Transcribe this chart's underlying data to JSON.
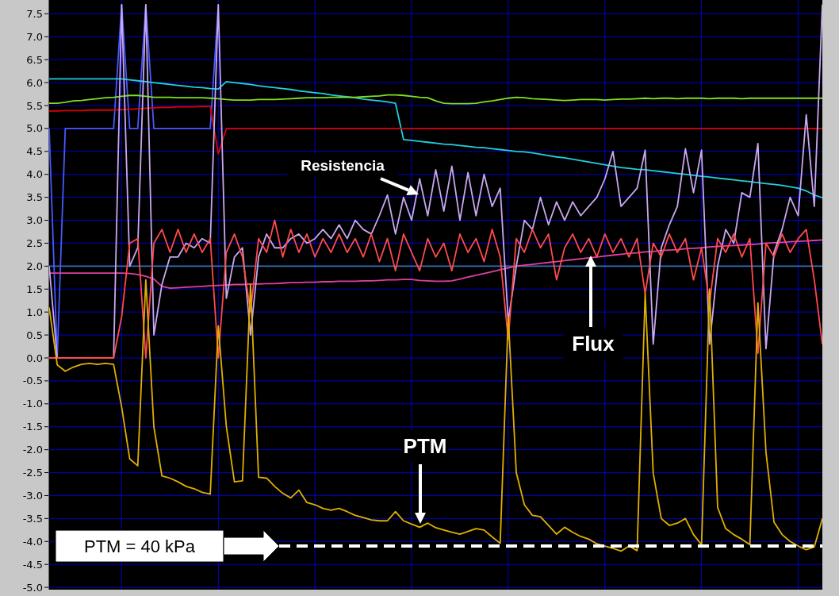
{
  "chart_data": {
    "type": "line",
    "ylim": [
      -5.05,
      7.8
    ],
    "categories": [
      null,
      null,
      null,
      null,
      null,
      null,
      null,
      null,
      null,
      null,
      null,
      null,
      null,
      null,
      null,
      null,
      null,
      null,
      null,
      null,
      null,
      null,
      null,
      null,
      null,
      null,
      null,
      null,
      null,
      null,
      null,
      null,
      null,
      null,
      null,
      null,
      null,
      null,
      null,
      null,
      null,
      null,
      null,
      null,
      null,
      null,
      null,
      null,
      null,
      null,
      null,
      null,
      null,
      null,
      null,
      null,
      null,
      null,
      null,
      null,
      null,
      null,
      null,
      null,
      null,
      null,
      null,
      null,
      null,
      null,
      null,
      null,
      null,
      null,
      null,
      null,
      null,
      null,
      null,
      null,
      null,
      null,
      null,
      null,
      null,
      null,
      null,
      null,
      null,
      null,
      null,
      null,
      null,
      null,
      null,
      null,
      null
    ],
    "yticks": [
      {
        "value": -5,
        "label": "-5.0"
      },
      {
        "value": -4.5,
        "label": "-4.5"
      },
      {
        "value": -4,
        "label": "-4.0"
      },
      {
        "value": -3.5,
        "label": "-3.5"
      },
      {
        "value": -3,
        "label": "-3.0"
      },
      {
        "value": -2.5,
        "label": "-2.5"
      },
      {
        "value": -2,
        "label": "-2.0"
      },
      {
        "value": -1.5,
        "label": "-1.5"
      },
      {
        "value": -1,
        "label": "-1.0"
      },
      {
        "value": -0.5,
        "label": "-0.5"
      },
      {
        "value": 0,
        "label": "0.0"
      },
      {
        "value": 0.5,
        "label": "0.5"
      },
      {
        "value": 1,
        "label": "1.0"
      },
      {
        "value": 1.5,
        "label": "1.5"
      },
      {
        "value": 2,
        "label": "2.0"
      },
      {
        "value": 2.5,
        "label": "2.5"
      },
      {
        "value": 3,
        "label": "3.0"
      },
      {
        "value": 3.5,
        "label": "3.5"
      },
      {
        "value": 4,
        "label": "4.0"
      },
      {
        "value": 4.5,
        "label": "4.5"
      },
      {
        "value": 5,
        "label": "5.0"
      },
      {
        "value": 5.5,
        "label": "5.5"
      },
      {
        "value": 6,
        "label": "6.0"
      },
      {
        "value": 6.5,
        "label": "6.5"
      },
      {
        "value": 7,
        "label": "7.0"
      },
      {
        "value": 7.5,
        "label": "7.5"
      }
    ],
    "tick_labels": "y",
    "grid": true,
    "marker": "none",
    "line_style": "solid",
    "series": [
      {
        "color": "#3070b0",
        "values": [
          2.0,
          2.0,
          2.0,
          2.0,
          2.0,
          2.0,
          2.0,
          2.0,
          2.0,
          2.0,
          2.0,
          2.0,
          2.0,
          2.0,
          2.0,
          2.0,
          2.0,
          2.0,
          2.0,
          2.0,
          2.0,
          2.0,
          2.0,
          2.0,
          2.0,
          2.0,
          2.0,
          2.0,
          2.0,
          2.0,
          2.0,
          2.0,
          2.0,
          2.0,
          2.0,
          2.0,
          2.0,
          2.0,
          2.0,
          2.0,
          2.0,
          2.0,
          2.0,
          2.0,
          2.0,
          2.0,
          2.0,
          2.0,
          2.0,
          2.0,
          2.0,
          2.0,
          2.0,
          2.0,
          2.0,
          2.0,
          2.0,
          2.0,
          2.0,
          2.0,
          2.0,
          2.0,
          2.0,
          2.0,
          2.0,
          2.0,
          2.0,
          2.0,
          2.0,
          2.0,
          2.0,
          2.0,
          2.0,
          2.0,
          2.0,
          2.0,
          2.0,
          2.0,
          2.0,
          2.0,
          2.0,
          2.0,
          2.0,
          2.0,
          2.0,
          2.0,
          2.0,
          2.0,
          2.0,
          2.0,
          2.0,
          2.0,
          2.0,
          2.0,
          2.0,
          2.0,
          2.0
        ]
      },
      {
        "color": "#4858ff",
        "values": [
          5.0,
          0,
          5.0,
          5.0,
          5.0,
          5.0,
          5.0,
          5.0,
          5.0,
          7.7,
          5.0,
          5.0,
          7.7,
          5.0,
          5.0,
          5.0,
          5.0,
          5.0,
          5.0,
          5.0,
          5.0,
          7.7,
          null,
          null,
          null,
          null,
          null,
          null,
          null,
          null,
          null,
          null,
          null,
          null,
          null,
          null,
          null,
          null,
          null,
          null,
          null,
          null,
          null,
          null,
          null,
          null,
          null,
          null,
          null,
          null,
          null,
          null,
          null,
          null,
          null,
          null,
          null,
          null,
          null,
          null,
          null,
          null,
          null,
          null,
          null,
          null,
          null,
          null,
          null,
          null,
          null,
          null,
          null,
          null,
          null,
          null,
          null,
          null,
          null,
          null,
          null,
          null,
          null,
          null,
          null,
          null,
          null,
          null,
          null,
          null,
          null,
          null,
          null,
          null,
          null,
          null,
          null
        ]
      },
      {
        "color": "#20d0e0",
        "values": [
          6.08,
          6.08,
          6.08,
          6.08,
          6.08,
          6.08,
          6.08,
          6.08,
          6.08,
          6.08,
          6.06,
          6.04,
          6.02,
          6.0,
          5.98,
          5.96,
          5.94,
          5.92,
          5.9,
          5.89,
          5.87,
          5.86,
          6.02,
          6.0,
          5.98,
          5.96,
          5.93,
          5.91,
          5.89,
          5.87,
          5.85,
          5.82,
          5.8,
          5.78,
          5.76,
          5.73,
          5.71,
          5.69,
          5.67,
          5.64,
          5.62,
          5.6,
          5.58,
          5.55,
          4.76,
          4.74,
          4.72,
          4.7,
          4.68,
          4.66,
          4.65,
          4.63,
          4.61,
          4.59,
          4.58,
          4.56,
          4.54,
          4.52,
          4.5,
          4.49,
          4.47,
          4.44,
          4.41,
          4.38,
          4.36,
          4.33,
          4.3,
          4.27,
          4.24,
          4.21,
          4.18,
          4.15,
          4.13,
          4.11,
          4.1,
          4.08,
          4.06,
          4.04,
          4.02,
          4.0,
          3.98,
          3.96,
          3.94,
          3.92,
          3.9,
          3.88,
          3.86,
          3.84,
          3.82,
          3.8,
          3.78,
          3.76,
          3.73,
          3.7,
          3.64,
          3.55,
          3.49
        ]
      },
      {
        "color": "#80e020",
        "values": [
          5.55,
          5.55,
          5.57,
          5.6,
          5.61,
          5.63,
          5.65,
          5.67,
          5.68,
          5.7,
          5.72,
          5.72,
          5.7,
          5.68,
          5.68,
          5.68,
          5.67,
          5.67,
          5.67,
          5.67,
          5.66,
          5.65,
          5.63,
          5.62,
          5.62,
          5.62,
          5.63,
          5.63,
          5.63,
          5.64,
          5.65,
          5.66,
          5.67,
          5.67,
          5.67,
          5.68,
          5.68,
          5.68,
          5.68,
          5.69,
          5.7,
          5.71,
          5.73,
          5.73,
          5.72,
          5.7,
          5.68,
          5.67,
          5.6,
          5.55,
          5.54,
          5.54,
          5.54,
          5.55,
          5.58,
          5.6,
          5.63,
          5.66,
          5.68,
          5.67,
          5.65,
          5.64,
          5.63,
          5.62,
          5.61,
          5.62,
          5.63,
          5.63,
          5.63,
          5.62,
          5.63,
          5.64,
          5.64,
          5.65,
          5.66,
          5.65,
          5.66,
          5.66,
          5.65,
          5.66,
          5.66,
          5.66,
          5.65,
          5.66,
          5.66,
          5.66,
          5.65,
          5.66,
          5.66,
          5.66,
          5.66,
          5.66,
          5.66,
          5.66,
          5.66,
          5.66,
          5.66
        ]
      },
      {
        "color": "#e00000",
        "values": [
          5.38,
          5.38,
          5.39,
          5.39,
          5.39,
          5.4,
          5.4,
          5.4,
          5.4,
          5.41,
          5.42,
          5.43,
          5.44,
          5.45,
          5.46,
          5.46,
          5.47,
          5.47,
          5.47,
          5.48,
          5.48,
          4.45,
          5.0,
          5.0,
          5.0,
          5.0,
          5.0,
          5.0,
          5.0,
          5.0,
          5.0,
          5.0,
          5.0,
          5.0,
          5.0,
          5.0,
          5.0,
          5.0,
          5.0,
          5.0,
          5.0,
          5.0,
          5.0,
          5.0,
          5.0,
          5.0,
          5.0,
          5.0,
          5.0,
          5.0,
          5.0,
          5.0,
          5.0,
          5.0,
          5.0,
          5.0,
          5.0,
          5.0,
          5.0,
          5.0,
          5.0,
          5.0,
          5.0,
          5.0,
          5.0,
          5.0,
          5.0,
          5.0,
          5.0,
          5.0,
          5.0,
          5.0,
          5.0,
          5.0,
          5.0,
          5.0,
          5.0,
          5.0,
          5.0,
          5.0,
          5.0,
          5.0,
          5.0,
          5.0,
          5.0,
          5.0,
          5.0,
          5.0,
          5.0,
          5.0,
          5.0,
          5.0,
          5.0,
          5.0,
          5.0,
          5.0,
          5.0
        ]
      },
      {
        "color": "#e040a0",
        "values": [
          1.85,
          1.85,
          1.85,
          1.85,
          1.85,
          1.85,
          1.85,
          1.85,
          1.85,
          1.85,
          1.84,
          1.82,
          1.78,
          1.72,
          1.56,
          1.52,
          1.53,
          1.54,
          1.55,
          1.56,
          1.57,
          1.58,
          1.59,
          1.6,
          1.6,
          1.61,
          1.61,
          1.62,
          1.62,
          1.63,
          1.64,
          1.64,
          1.65,
          1.65,
          1.66,
          1.66,
          1.67,
          1.67,
          1.67,
          1.68,
          1.68,
          1.69,
          1.7,
          1.7,
          1.71,
          1.71,
          1.69,
          1.68,
          1.67,
          1.67,
          1.68,
          1.72,
          1.76,
          1.8,
          1.84,
          1.88,
          1.92,
          1.96,
          2.0,
          2.02,
          2.04,
          2.06,
          2.08,
          2.1,
          2.12,
          2.14,
          2.16,
          2.18,
          2.2,
          2.22,
          2.24,
          2.26,
          2.28,
          2.29,
          2.31,
          2.32,
          2.34,
          2.35,
          2.36,
          2.38,
          2.39,
          2.4,
          2.42,
          2.43,
          2.44,
          2.45,
          2.46,
          2.47,
          2.48,
          2.5,
          2.51,
          2.52,
          2.53,
          2.54,
          2.55,
          2.56,
          2.57
        ]
      },
      {
        "color": "#c8a8f0",
        "values": [
          2.0,
          0,
          0,
          0,
          0,
          0,
          0,
          0,
          0,
          7.7,
          2.0,
          2.4,
          7.7,
          0.5,
          1.6,
          2.2,
          2.2,
          2.5,
          2.4,
          2.6,
          2.5,
          7.7,
          1.3,
          2.2,
          2.4,
          0.5,
          2.2,
          2.7,
          2.4,
          2.4,
          2.6,
          2.7,
          2.5,
          2.6,
          2.8,
          2.6,
          2.9,
          2.6,
          3.0,
          2.8,
          2.7,
          3.1,
          3.55,
          2.7,
          3.5,
          3.0,
          3.9,
          3.1,
          4.1,
          3.2,
          4.18,
          3.0,
          4.04,
          3.1,
          4.0,
          3.3,
          3.7,
          0.8,
          2.0,
          3.0,
          2.8,
          3.5,
          2.9,
          3.4,
          3.0,
          3.4,
          3.1,
          3.3,
          3.5,
          3.9,
          4.5,
          3.3,
          3.5,
          3.7,
          4.53,
          0.3,
          2.4,
          2.9,
          3.3,
          4.56,
          3.6,
          4.53,
          0.3,
          2.0,
          2.8,
          2.5,
          3.6,
          3.5,
          4.67,
          0.2,
          2.3,
          2.8,
          3.5,
          3.1,
          5.3,
          3.3,
          7.7
        ]
      },
      {
        "color": "#ff4a4a",
        "values": [
          0,
          0,
          0,
          0,
          0,
          0,
          0,
          0,
          0,
          0.9,
          2.5,
          2.6,
          0,
          2.5,
          2.8,
          2.3,
          2.8,
          2.3,
          2.7,
          2.3,
          2.6,
          0,
          2.3,
          2.7,
          2.2,
          1.0,
          2.6,
          2.3,
          3.0,
          2.2,
          2.8,
          2.3,
          2.7,
          2.2,
          2.6,
          2.3,
          2.7,
          2.3,
          2.6,
          2.2,
          2.7,
          2.1,
          2.6,
          1.9,
          2.7,
          2.3,
          1.9,
          2.6,
          2.2,
          2.5,
          1.9,
          2.7,
          2.3,
          2.6,
          2.1,
          2.8,
          2.2,
          0.4,
          2.6,
          2.3,
          2.8,
          2.4,
          2.7,
          1.7,
          2.4,
          2.7,
          2.3,
          2.6,
          2.2,
          2.7,
          2.3,
          2.6,
          2.2,
          2.6,
          1.4,
          2.5,
          2.2,
          2.7,
          2.3,
          2.6,
          1.7,
          2.4,
          1.2,
          2.6,
          2.3,
          2.7,
          2.2,
          2.6,
          0.1,
          2.5,
          2.2,
          2.7,
          2.3,
          2.6,
          2.8,
          1.7,
          0.3
        ]
      },
      {
        "color": "#e0b000",
        "values": [
          1.1,
          -0.15,
          -0.29,
          -0.2,
          -0.14,
          -0.12,
          -0.14,
          -0.12,
          -0.14,
          -1.07,
          -2.2,
          -2.35,
          1.7,
          -1.5,
          -2.57,
          -2.62,
          -2.7,
          -2.8,
          -2.85,
          -2.93,
          -2.97,
          0.7,
          -1.5,
          -2.7,
          -2.68,
          1.6,
          -2.6,
          -2.62,
          -2.8,
          -2.95,
          -3.05,
          -2.88,
          -3.15,
          -3.2,
          -3.28,
          -3.32,
          -3.28,
          -3.35,
          -3.43,
          -3.48,
          -3.53,
          -3.55,
          -3.55,
          -3.35,
          -3.55,
          -3.62,
          -3.69,
          -3.6,
          -3.7,
          -3.75,
          -3.8,
          -3.84,
          -3.78,
          -3.72,
          -3.75,
          -3.9,
          -4.04,
          0.9,
          -2.5,
          -3.2,
          -3.43,
          -3.46,
          -3.65,
          -3.84,
          -3.69,
          -3.8,
          -3.89,
          -3.95,
          -4.05,
          -4.1,
          -4.15,
          -4.21,
          -4.1,
          -4.2,
          1.4,
          -2.51,
          -3.5,
          -3.65,
          -3.6,
          -3.5,
          -3.85,
          -4.07,
          1.5,
          -3.26,
          -3.72,
          -3.85,
          -3.95,
          -4.07,
          1.2,
          -2.05,
          -3.58,
          -3.85,
          -4.0,
          -4.1,
          -4.18,
          -4.12,
          -3.5
        ]
      }
    ],
    "ref_lines": [
      {
        "axis": "y",
        "value": -4.1,
        "color": "#ffffff",
        "line_style": "dashed"
      }
    ],
    "annotations": [
      "Resistencia",
      "Flux",
      "PTM",
      "PTM = 40 kPa"
    ]
  }
}
